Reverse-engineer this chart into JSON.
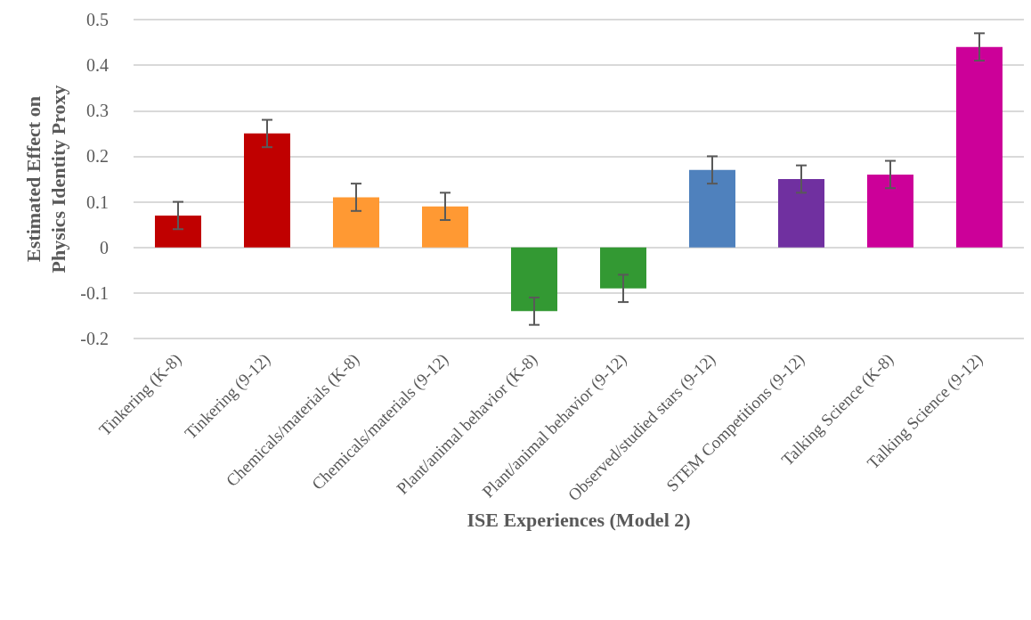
{
  "chart_data": {
    "type": "bar",
    "xlabel": "ISE Experiences (Model 2)",
    "ylabel": "Estimated Effect on\nPhysics Identity Proxy",
    "categories": [
      "Tinkering (K-8)",
      "Tinkering (9-12)",
      "Chemicals/materials (K-8)",
      "Chemicals/materials (9-12)",
      "Plant/animal behavior (K-8)",
      "Plant/animal behavior (9-12)",
      "Observed/studied stars (9-12)",
      "STEM Competitions (9-12)",
      "Talking Science (K-8)",
      "Talking Science (9-12)"
    ],
    "values": [
      0.07,
      0.25,
      0.11,
      0.09,
      -0.14,
      -0.09,
      0.17,
      0.15,
      0.16,
      0.44
    ],
    "colors": [
      "#c00000",
      "#c00000",
      "#ff9933",
      "#ff9933",
      "#339933",
      "#339933",
      "#4f81bd",
      "#7030a0",
      "#cc0099",
      "#cc0099"
    ],
    "errors": [
      0.03,
      0.03,
      0.03,
      0.03,
      0.03,
      0.03,
      0.03,
      0.03,
      0.03,
      0.03
    ],
    "ylim": [
      -0.2,
      0.5
    ],
    "yticks": [
      -0.2,
      -0.1,
      0,
      0.1,
      0.2,
      0.3,
      0.4,
      0.5
    ],
    "grid": "y"
  }
}
